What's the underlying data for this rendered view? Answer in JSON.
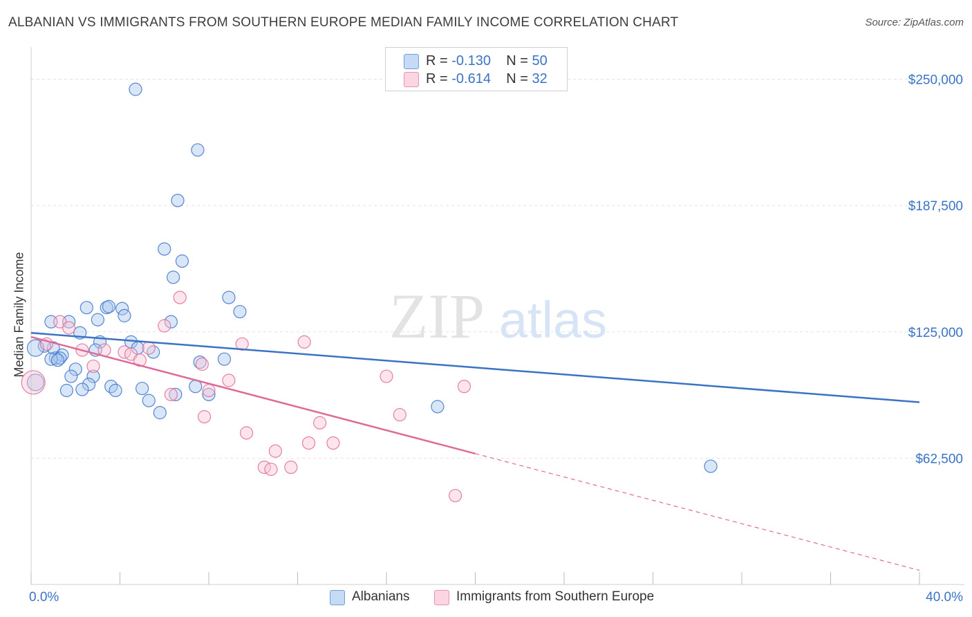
{
  "header": {
    "title": "ALBANIAN VS IMMIGRANTS FROM SOUTHERN EUROPE MEDIAN FAMILY INCOME CORRELATION CHART",
    "source": "Source: ZipAtlas.com"
  },
  "watermark": {
    "zip": "ZIP",
    "atlas": "atlas"
  },
  "legend": {
    "rows": [
      {
        "r_label": "R =",
        "r_value": "-0.130",
        "n_label": "N =",
        "n_value": "50",
        "color": "#a9c8f0",
        "border": "#6f9fd8"
      },
      {
        "r_label": "R =",
        "r_value": "-0.614",
        "n_label": "N =",
        "n_value": "32",
        "color": "#f8c5d6",
        "border": "#e98fb0"
      }
    ]
  },
  "bottom_legend": {
    "a": "Albanians",
    "b": "Immigrants from Southern Europe"
  },
  "chart_data": {
    "type": "scatter",
    "ylabel": "Median Family Income",
    "xlim": [
      0,
      40
    ],
    "ylim": [
      0,
      262500
    ],
    "x_tick_labels": [
      "0.0%",
      "40.0%"
    ],
    "y_ticks": [
      62500,
      125000,
      187500,
      250000
    ],
    "y_tick_labels": [
      "$62,500",
      "$125,000",
      "$187,500",
      "$250,000"
    ],
    "grid": true,
    "legend_position": "top-center",
    "colors": {
      "blue": "#3a73c4",
      "pink": "#e06a96",
      "axis_text": "#3a73c4"
    },
    "series": [
      {
        "name": "Albanians",
        "color": "#3a73c4",
        "fill": "#a9c8f0",
        "trend": {
          "x": [
            0,
            40
          ],
          "y": [
            124500,
            90200
          ],
          "dashed_from": null
        },
        "points": [
          [
            4.7,
            245000
          ],
          [
            7.5,
            215000
          ],
          [
            6.6,
            190000
          ],
          [
            6.0,
            166000
          ],
          [
            6.8,
            160000
          ],
          [
            6.4,
            152000
          ],
          [
            2.5,
            137000
          ],
          [
            3.4,
            137000
          ],
          [
            3.5,
            137500
          ],
          [
            4.1,
            136500
          ],
          [
            4.2,
            133000
          ],
          [
            3.0,
            131000
          ],
          [
            8.9,
            142000
          ],
          [
            9.4,
            135000
          ],
          [
            1.7,
            130000
          ],
          [
            6.3,
            130000
          ],
          [
            0.9,
            130000
          ],
          [
            2.2,
            124500
          ],
          [
            3.1,
            120000
          ],
          [
            4.5,
            120000
          ],
          [
            4.8,
            117000
          ],
          [
            1.0,
            117000
          ],
          [
            0.6,
            118000
          ],
          [
            0.2,
            117000
          ],
          [
            2.9,
            116000
          ],
          [
            5.5,
            115000
          ],
          [
            1.4,
            113500
          ],
          [
            1.1,
            112000
          ],
          [
            1.3,
            112000
          ],
          [
            0.9,
            111500
          ],
          [
            1.2,
            111000
          ],
          [
            7.6,
            110000
          ],
          [
            8.7,
            111500
          ],
          [
            2.0,
            106500
          ],
          [
            2.8,
            103000
          ],
          [
            1.8,
            103000
          ],
          [
            0.2,
            100000
          ],
          [
            2.6,
            99000
          ],
          [
            3.6,
            98000
          ],
          [
            7.4,
            98000
          ],
          [
            1.6,
            96000
          ],
          [
            2.3,
            96500
          ],
          [
            3.8,
            96000
          ],
          [
            5.0,
            97000
          ],
          [
            6.5,
            94000
          ],
          [
            8.0,
            94000
          ],
          [
            5.3,
            91000
          ],
          [
            5.8,
            85000
          ],
          [
            18.3,
            88000
          ],
          [
            30.6,
            58500
          ]
        ]
      },
      {
        "name": "Immigrants from Southern Europe",
        "color": "#e06a96",
        "fill": "#f8c5d6",
        "trend": {
          "x": [
            0,
            40
          ],
          "y": [
            122500,
            7000
          ],
          "dashed_from": 20
        },
        "points": [
          [
            0.1,
            100000
          ],
          [
            1.3,
            130000
          ],
          [
            1.7,
            127000
          ],
          [
            0.7,
            119000
          ],
          [
            2.3,
            116000
          ],
          [
            3.3,
            116000
          ],
          [
            4.2,
            115000
          ],
          [
            4.5,
            114000
          ],
          [
            5.3,
            117000
          ],
          [
            4.9,
            111000
          ],
          [
            2.8,
            108000
          ],
          [
            6.0,
            128000
          ],
          [
            6.7,
            142000
          ],
          [
            7.7,
            109000
          ],
          [
            6.3,
            94000
          ],
          [
            8.0,
            96000
          ],
          [
            8.9,
            101000
          ],
          [
            9.5,
            119000
          ],
          [
            12.3,
            120000
          ],
          [
            7.8,
            83000
          ],
          [
            9.7,
            75000
          ],
          [
            11.0,
            66000
          ],
          [
            12.5,
            70000
          ],
          [
            13.0,
            80000
          ],
          [
            13.6,
            70000
          ],
          [
            10.5,
            58000
          ],
          [
            10.8,
            57000
          ],
          [
            11.7,
            58000
          ],
          [
            16.0,
            103000
          ],
          [
            16.6,
            84000
          ],
          [
            19.5,
            98000
          ],
          [
            19.1,
            44000
          ]
        ]
      }
    ]
  }
}
